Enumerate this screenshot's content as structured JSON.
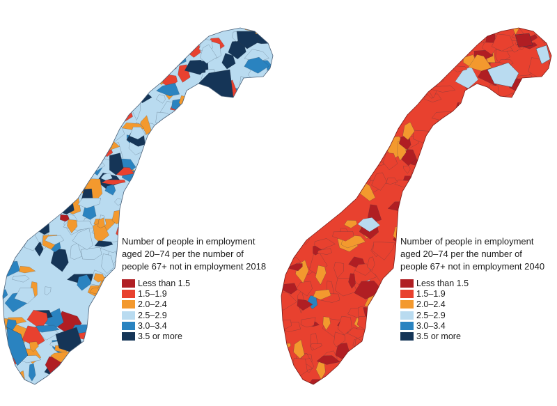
{
  "classes": [
    {
      "label": "Less than 1.5",
      "color": "#b01e23"
    },
    {
      "label": "1.5–1.9",
      "color": "#e8412f"
    },
    {
      "label": "2.0–2.4",
      "color": "#f3992e"
    },
    {
      "label": "2.5–2.9",
      "color": "#b9dbf0"
    },
    {
      "label": "3.0–3.4",
      "color": "#2a83c0"
    },
    {
      "label": "3.5 or more",
      "color": "#153557"
    }
  ],
  "maps": [
    {
      "title_lines": [
        "Number of people in employment",
        "aged 20–74 per the number of",
        "people 67+ not in employment 2018"
      ],
      "dominant_class": "2.5–2.9"
    },
    {
      "title_lines": [
        "Number of people in employment",
        "aged 20–74 per the number of",
        "people 67+ not in employment 2040"
      ],
      "dominant_class": "1.5–1.9"
    }
  ]
}
